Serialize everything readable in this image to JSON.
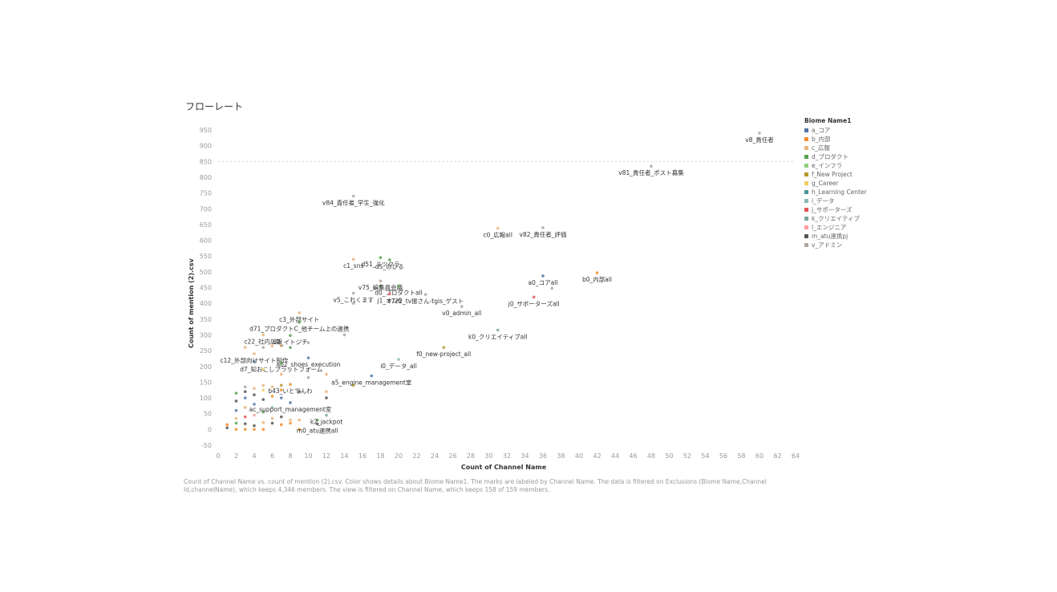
{
  "title": "フローレート",
  "legend": {
    "title": "Biome Name1",
    "items": [
      {
        "label": "a_コア",
        "color": "#4e79a7"
      },
      {
        "label": "b_内部",
        "color": "#f28e2b"
      },
      {
        "label": "c_広報",
        "color": "#e9b47a"
      },
      {
        "label": "d_プロダクト",
        "color": "#59a14f"
      },
      {
        "label": "e_インフラ",
        "color": "#8cd17d"
      },
      {
        "label": "f_New Project",
        "color": "#b6992d"
      },
      {
        "label": "g_Career",
        "color": "#f1ce63"
      },
      {
        "label": "h_Learning Center",
        "color": "#499894"
      },
      {
        "label": "i_データ",
        "color": "#86bcb6"
      },
      {
        "label": "j_サポーターズ",
        "color": "#e15759"
      },
      {
        "label": "k_クリエイティブ",
        "color": "#79a7a0"
      },
      {
        "label": "l_エンジニア",
        "color": "#ff9d9a"
      },
      {
        "label": "m_atu連携pj",
        "color": "#555555"
      },
      {
        "label": "v_アドミン",
        "color": "#b0a6a0"
      }
    ]
  },
  "caption": "Count of Channel Name vs. count of mention (2).csv. Color shows details about Biome Name1. The marks are labeled by Channel Name. The data is filtered on Exclusions (Biome Name,Channel Id,channelName), which keeps 4,346 members. The view is filtered on Channel Name, which keeps 158 of 159 members.",
  "chart_data": {
    "type": "scatter",
    "title": "フローレート",
    "xlabel": "Count of Channel Name",
    "ylabel": "Count of mention (2).csv",
    "xlim": [
      0,
      64
    ],
    "ylim": [
      -50,
      950
    ],
    "x_ticks": [
      0,
      2,
      4,
      6,
      8,
      10,
      12,
      14,
      16,
      18,
      20,
      22,
      24,
      26,
      28,
      30,
      32,
      34,
      36,
      38,
      40,
      42,
      44,
      46,
      48,
      50,
      52,
      54,
      56,
      58,
      60,
      62,
      64
    ],
    "y_ticks": [
      -50,
      0,
      50,
      100,
      150,
      200,
      250,
      300,
      350,
      400,
      450,
      500,
      550,
      600,
      650,
      700,
      750,
      800,
      850,
      900,
      950
    ],
    "reference_line_y": 850,
    "grid": false,
    "legend_position": "right",
    "labeled_points": [
      {
        "label": "v8_責任者",
        "x": 60,
        "y": 940,
        "color": "#b0a6a0"
      },
      {
        "label": "v81_責任者_ポスト募集",
        "x": 48,
        "y": 835,
        "color": "#b0a6a0"
      },
      {
        "label": "v84_責任者_学生_強化",
        "x": 15,
        "y": 740,
        "color": "#b0a6a0"
      },
      {
        "label": "v82_責任者_評価",
        "x": 36,
        "y": 640,
        "color": "#b0a6a0"
      },
      {
        "label": "c0_広報all",
        "x": 31,
        "y": 638,
        "color": "#e9b47a"
      },
      {
        "label": "d51_ミツクラ",
        "x": 18,
        "y": 545,
        "color": "#59a14f"
      },
      {
        "label": "c1_sns",
        "x": 15,
        "y": 540,
        "color": "#e9b47a"
      },
      {
        "label": "d5_のびる",
        "x": 19,
        "y": 538,
        "color": "#59a14f"
      },
      {
        "label": "a0_コアall",
        "x": 36,
        "y": 487,
        "color": "#4e79a7"
      },
      {
        "label": "b0_内部all",
        "x": 42,
        "y": 497,
        "color": "#f28e2b"
      },
      {
        "label": "v75_編集員会議",
        "x": 18,
        "y": 471,
        "color": "#b0a6a0"
      },
      {
        "label": "d0_プロダクトall",
        "x": 20,
        "y": 455,
        "color": "#59a14f"
      },
      {
        "label": "v5_これくます",
        "x": 15,
        "y": 432,
        "color": "#b0a6a0"
      },
      {
        "label": "v722_tv振さん-tgis_ゲスト",
        "x": 23,
        "y": 428,
        "color": "#b0a6a0"
      },
      {
        "label": "j1_オン6",
        "x": 19,
        "y": 430,
        "color": "#e15759"
      },
      {
        "label": "j0_サポーターズall",
        "x": 35,
        "y": 420,
        "color": "#e15759"
      },
      {
        "label": "v0_admin_all",
        "x": 27,
        "y": 390,
        "color": "#b0a6a0"
      },
      {
        "label": "c3_外部サイト",
        "x": 9,
        "y": 370,
        "color": "#e9b47a"
      },
      {
        "label": "d71_プロダクトC_他チーム上の連携",
        "x": 9,
        "y": 340,
        "color": "#59a14f"
      },
      {
        "label": "c22_社内広報",
        "x": 5,
        "y": 300,
        "color": "#e9b47a"
      },
      {
        "label": "d2_イトジチ",
        "x": 8,
        "y": 298,
        "color": "#59a14f"
      },
      {
        "label": "k0_クリエイティブall",
        "x": 31,
        "y": 315,
        "color": "#79a7a0"
      },
      {
        "label": "f0_new-project_all",
        "x": 25,
        "y": 260,
        "color": "#b6992d"
      },
      {
        "label": "c12_外部向けサイト制作",
        "x": 4,
        "y": 240,
        "color": "#e9b47a"
      },
      {
        "label": "a62_shoes_execution",
        "x": 10,
        "y": 227,
        "color": "#4e79a7"
      },
      {
        "label": "i0_データ_all",
        "x": 20,
        "y": 222,
        "color": "#86bcb6"
      },
      {
        "label": "d7_知おこしプラットフォーム",
        "x": 7,
        "y": 212,
        "color": "#59a14f"
      },
      {
        "label": "a5_engine_management室",
        "x": 17,
        "y": 170,
        "color": "#4e79a7"
      },
      {
        "label": "b43_いとでんわ",
        "x": 8,
        "y": 143,
        "color": "#f28e2b"
      },
      {
        "label": "ac_support_management室",
        "x": 8,
        "y": 85,
        "color": "#4e79a7"
      },
      {
        "label": "k2_jackpot",
        "x": 12,
        "y": 45,
        "color": "#79a7a0"
      },
      {
        "label": "m0_atu連携all",
        "x": 11,
        "y": 18,
        "color": "#555555"
      }
    ],
    "points": [
      {
        "x": 1,
        "y": 5,
        "color": "#555555"
      },
      {
        "x": 1,
        "y": 15,
        "color": "#f28e2b"
      },
      {
        "x": 2,
        "y": 0,
        "color": "#f28e2b"
      },
      {
        "x": 2,
        "y": 20,
        "color": "#59a14f"
      },
      {
        "x": 2,
        "y": 35,
        "color": "#e9b47a"
      },
      {
        "x": 2,
        "y": 60,
        "color": "#4e79a7"
      },
      {
        "x": 2,
        "y": 90,
        "color": "#555555"
      },
      {
        "x": 2,
        "y": 115,
        "color": "#59a14f"
      },
      {
        "x": 3,
        "y": 0,
        "color": "#f28e2b"
      },
      {
        "x": 3,
        "y": 18,
        "color": "#555555"
      },
      {
        "x": 3,
        "y": 40,
        "color": "#e15759"
      },
      {
        "x": 3,
        "y": 70,
        "color": "#e9b47a"
      },
      {
        "x": 3,
        "y": 100,
        "color": "#4e79a7"
      },
      {
        "x": 3,
        "y": 120,
        "color": "#555555"
      },
      {
        "x": 3,
        "y": 135,
        "color": "#b0a6a0"
      },
      {
        "x": 3,
        "y": 260,
        "color": "#e9b47a"
      },
      {
        "x": 4,
        "y": 0,
        "color": "#f28e2b"
      },
      {
        "x": 4,
        "y": 12,
        "color": "#555555"
      },
      {
        "x": 4,
        "y": 45,
        "color": "#ff9d9a"
      },
      {
        "x": 4,
        "y": 80,
        "color": "#4e79a7"
      },
      {
        "x": 4,
        "y": 110,
        "color": "#555555"
      },
      {
        "x": 4,
        "y": 130,
        "color": "#e9b47a"
      },
      {
        "x": 4,
        "y": 215,
        "color": "#4e79a7"
      },
      {
        "x": 5,
        "y": 0,
        "color": "#f28e2b"
      },
      {
        "x": 5,
        "y": 22,
        "color": "#e9b47a"
      },
      {
        "x": 5,
        "y": 55,
        "color": "#59a14f"
      },
      {
        "x": 5,
        "y": 95,
        "color": "#555555"
      },
      {
        "x": 5,
        "y": 125,
        "color": "#f1ce63"
      },
      {
        "x": 5,
        "y": 140,
        "color": "#e9b47a"
      },
      {
        "x": 5,
        "y": 190,
        "color": "#f1ce63"
      },
      {
        "x": 5,
        "y": 260,
        "color": "#b0a6a0"
      },
      {
        "x": 6,
        "y": 20,
        "color": "#555555"
      },
      {
        "x": 6,
        "y": 35,
        "color": "#e9b47a"
      },
      {
        "x": 6,
        "y": 70,
        "color": "#86bcb6"
      },
      {
        "x": 6,
        "y": 105,
        "color": "#f28e2b"
      },
      {
        "x": 6,
        "y": 135,
        "color": "#e9b47a"
      },
      {
        "x": 6,
        "y": 265,
        "color": "#e9b47a"
      },
      {
        "x": 7,
        "y": 15,
        "color": "#f28e2b"
      },
      {
        "x": 7,
        "y": 40,
        "color": "#555555"
      },
      {
        "x": 7,
        "y": 100,
        "color": "#4e79a7"
      },
      {
        "x": 7,
        "y": 125,
        "color": "#f28e2b"
      },
      {
        "x": 7,
        "y": 140,
        "color": "#b6992d"
      },
      {
        "x": 7,
        "y": 175,
        "color": "#e9b47a"
      },
      {
        "x": 7,
        "y": 265,
        "color": "#e9b47a"
      },
      {
        "x": 8,
        "y": 20,
        "color": "#f28e2b"
      },
      {
        "x": 8,
        "y": 30,
        "color": "#e9b47a"
      },
      {
        "x": 8,
        "y": 260,
        "color": "#59a14f"
      },
      {
        "x": 9,
        "y": 0,
        "color": "#f28e2b"
      },
      {
        "x": 9,
        "y": 30,
        "color": "#e9b47a"
      },
      {
        "x": 9,
        "y": 120,
        "color": "#555555"
      },
      {
        "x": 10,
        "y": 275,
        "color": "#b0a6a0"
      },
      {
        "x": 10,
        "y": 165,
        "color": "#b0a6a0"
      },
      {
        "x": 11,
        "y": 30,
        "color": "#59a14f"
      },
      {
        "x": 12,
        "y": 100,
        "color": "#555555"
      },
      {
        "x": 12,
        "y": 120,
        "color": "#e9b47a"
      },
      {
        "x": 12,
        "y": 175,
        "color": "#e9b47a"
      },
      {
        "x": 14,
        "y": 300,
        "color": "#b0a6a0"
      },
      {
        "x": 15,
        "y": 140,
        "color": "#b6992d"
      },
      {
        "x": 15,
        "y": 400,
        "color": "#b0a6a0"
      },
      {
        "x": 18,
        "y": 455,
        "color": "#59a14f"
      },
      {
        "x": 37,
        "y": 448,
        "color": "#b0a6a0"
      }
    ]
  }
}
